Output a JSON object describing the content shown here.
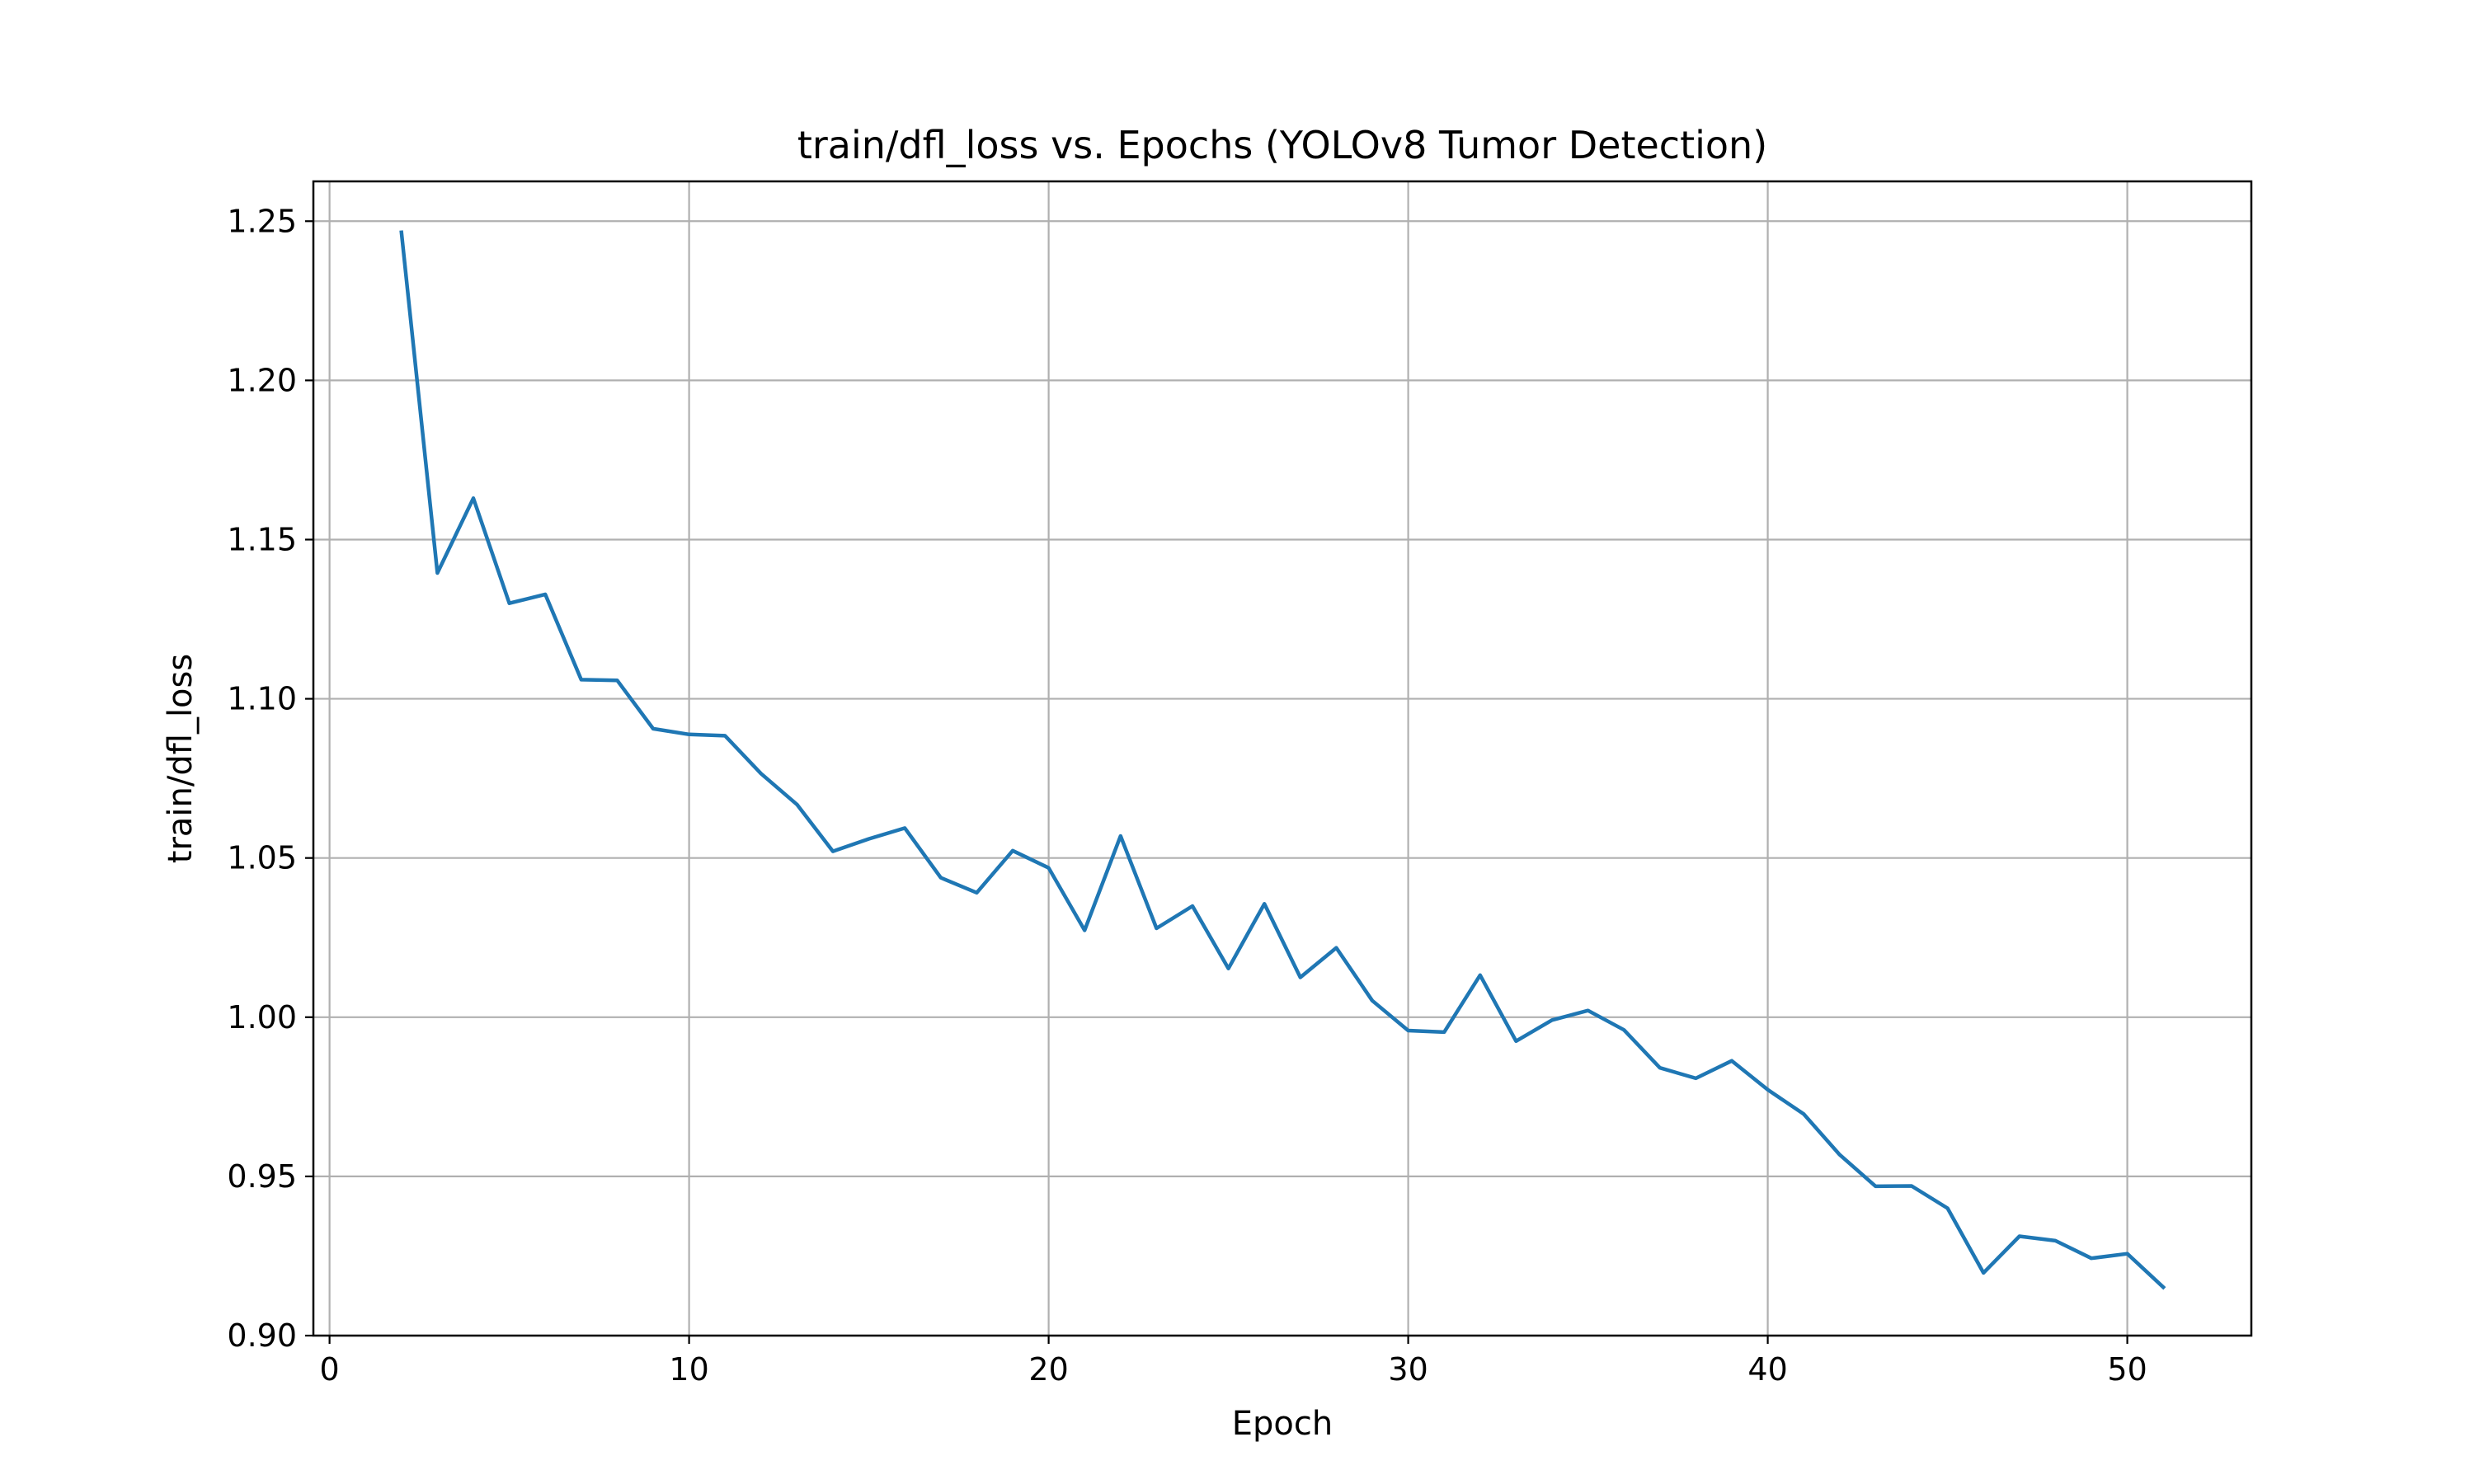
{
  "chart_data": {
    "type": "line",
    "title": "train/dfl_loss vs. Epochs (YOLOv8 Tumor Detection)",
    "xlabel": "Epoch",
    "ylabel": "train/dfl_loss",
    "xlim": [
      -0.45,
      53.45
    ],
    "ylim": [
      0.9,
      1.2625
    ],
    "xticks": [
      0,
      10,
      20,
      30,
      40,
      50
    ],
    "yticks": [
      0.9,
      0.95,
      1.0,
      1.05,
      1.1,
      1.15,
      1.2,
      1.25
    ],
    "grid": true,
    "line_color": "#1f77b4",
    "series": [
      {
        "x": [
          2,
          3,
          4,
          5,
          6,
          7,
          8,
          9,
          10,
          11,
          12,
          13,
          14,
          15,
          16,
          17,
          18,
          19,
          20,
          21,
          22,
          23,
          24,
          25,
          26,
          27,
          28,
          29,
          30,
          31,
          32,
          33,
          34,
          35,
          36,
          37,
          38,
          39,
          40,
          41,
          42,
          43,
          44,
          45,
          46,
          47,
          48,
          49,
          50,
          51
        ],
        "values": [
          1.2465,
          1.1395,
          1.163,
          1.13,
          1.1328,
          1.106,
          1.1058,
          1.0906,
          1.0888,
          1.0884,
          1.0765,
          1.0668,
          1.0521,
          1.056,
          1.0594,
          1.0438,
          1.0391,
          1.0523,
          1.0469,
          1.0273,
          1.0569,
          1.0279,
          1.0349,
          1.0153,
          1.0356,
          1.0125,
          1.0218,
          1.0052,
          0.9958,
          0.9953,
          1.0132,
          0.9925,
          0.9991,
          1.0021,
          0.996,
          0.9841,
          0.9808,
          0.9863,
          0.9772,
          0.9696,
          0.9568,
          0.9469,
          0.947,
          0.94,
          0.9197,
          0.9312,
          0.9298,
          0.9243,
          0.9257,
          0.9152
        ]
      }
    ]
  }
}
